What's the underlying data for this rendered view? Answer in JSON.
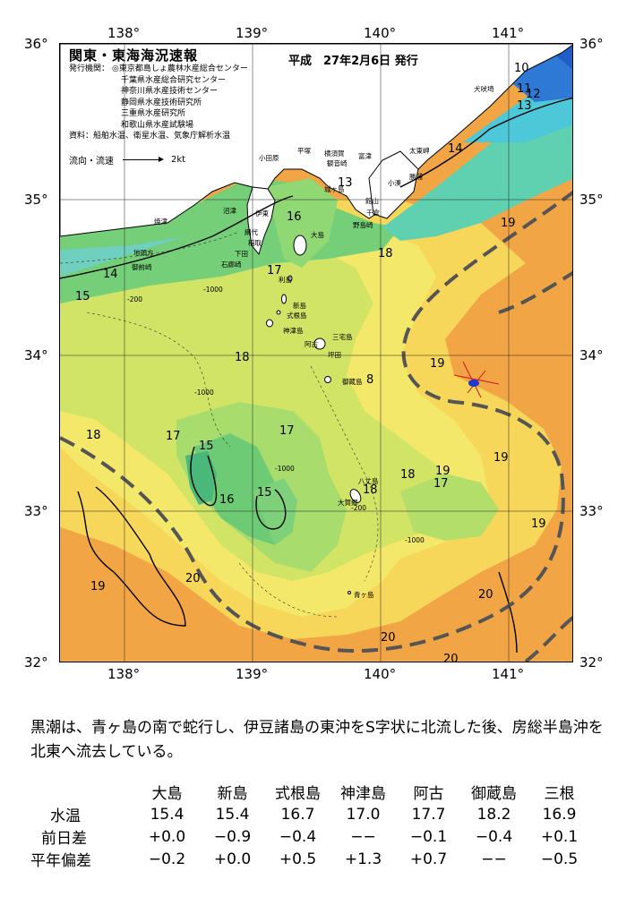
{
  "map": {
    "title": "関東・東海海況速報",
    "issue_date": "平成　27年2月6日 発行",
    "issuers_label": "発行機関：",
    "issuers": [
      "◎東京都島しょ農林水産総合センター",
      "千葉県水産総合研究センター",
      "神奈川県水産技術センター",
      "静岡県水産技術研究所",
      "三重県水産研究所",
      "和歌山県水産試験場"
    ],
    "data_label": "資料：",
    "data_sources": "船舶水温、衛星水温、気象庁解析水温",
    "legend_label": "流向・流速",
    "legend_value": "2kt",
    "lon_labels": [
      "138°",
      "139°",
      "140°",
      "141°"
    ],
    "lat_labels": [
      "36°",
      "35°",
      "34°",
      "33°",
      "32°"
    ],
    "temperature_labels": [
      "10",
      "11",
      "12",
      "13",
      "14",
      "13",
      "14",
      "15",
      "16",
      "17",
      "18",
      "18",
      "8",
      "18",
      "19",
      "19",
      "19",
      "19",
      "17",
      "17",
      "15",
      "16",
      "15",
      "17",
      "18",
      "18",
      "19",
      "19",
      "20",
      "20",
      "20",
      "20"
    ],
    "depth_labels": [
      "-200",
      "-1000",
      "-1000",
      "-1000",
      "-200",
      "-1000"
    ],
    "place_names": [
      "犬吠埼",
      "太東岬",
      "勝浦",
      "小湊",
      "富津",
      "観音崎",
      "城ヶ島",
      "平塚",
      "横須賀",
      "小田原",
      "千倉",
      "館山",
      "野島崎",
      "伊東",
      "沼津",
      "焼津",
      "網代",
      "稲取",
      "下田",
      "石廊崎",
      "御前崎",
      "地頭方",
      "大島",
      "利島",
      "新島",
      "式根島",
      "神津島",
      "三宅島",
      "坪田",
      "阿古",
      "御蔵島",
      "八丈島",
      "大賀郷",
      "青ヶ島"
    ],
    "colors": {
      "warm": "#f0a040",
      "yellow": "#f6e05a",
      "green": "#5cc870",
      "cyan": "#58c8e0",
      "blue": "#2d6fd8",
      "kuroshio_line": "#555555"
    }
  },
  "summary_text": "黒潮は、青ヶ島の南で蛇行し、伊豆諸島の東沖をS字状に北流した後、房総半島沖を北東へ流去している。",
  "table": {
    "stations": [
      "大島",
      "新島",
      "式根島",
      "神津島",
      "阿古",
      "御蔵島",
      "三根"
    ],
    "rows": [
      {
        "label": "水温",
        "values": [
          "15.4",
          "15.4",
          "16.7",
          "17.0",
          "17.7",
          "18.2",
          "16.9"
        ]
      },
      {
        "label": "前日差",
        "values": [
          "+0.0",
          "−0.9",
          "−0.4",
          "−−",
          "−0.1",
          "−0.4",
          "+0.1"
        ]
      },
      {
        "label": "平年偏差",
        "values": [
          "−0.2",
          "+0.0",
          "+0.5",
          "+1.3",
          "+0.7",
          "−−",
          "−0.5"
        ]
      }
    ]
  }
}
